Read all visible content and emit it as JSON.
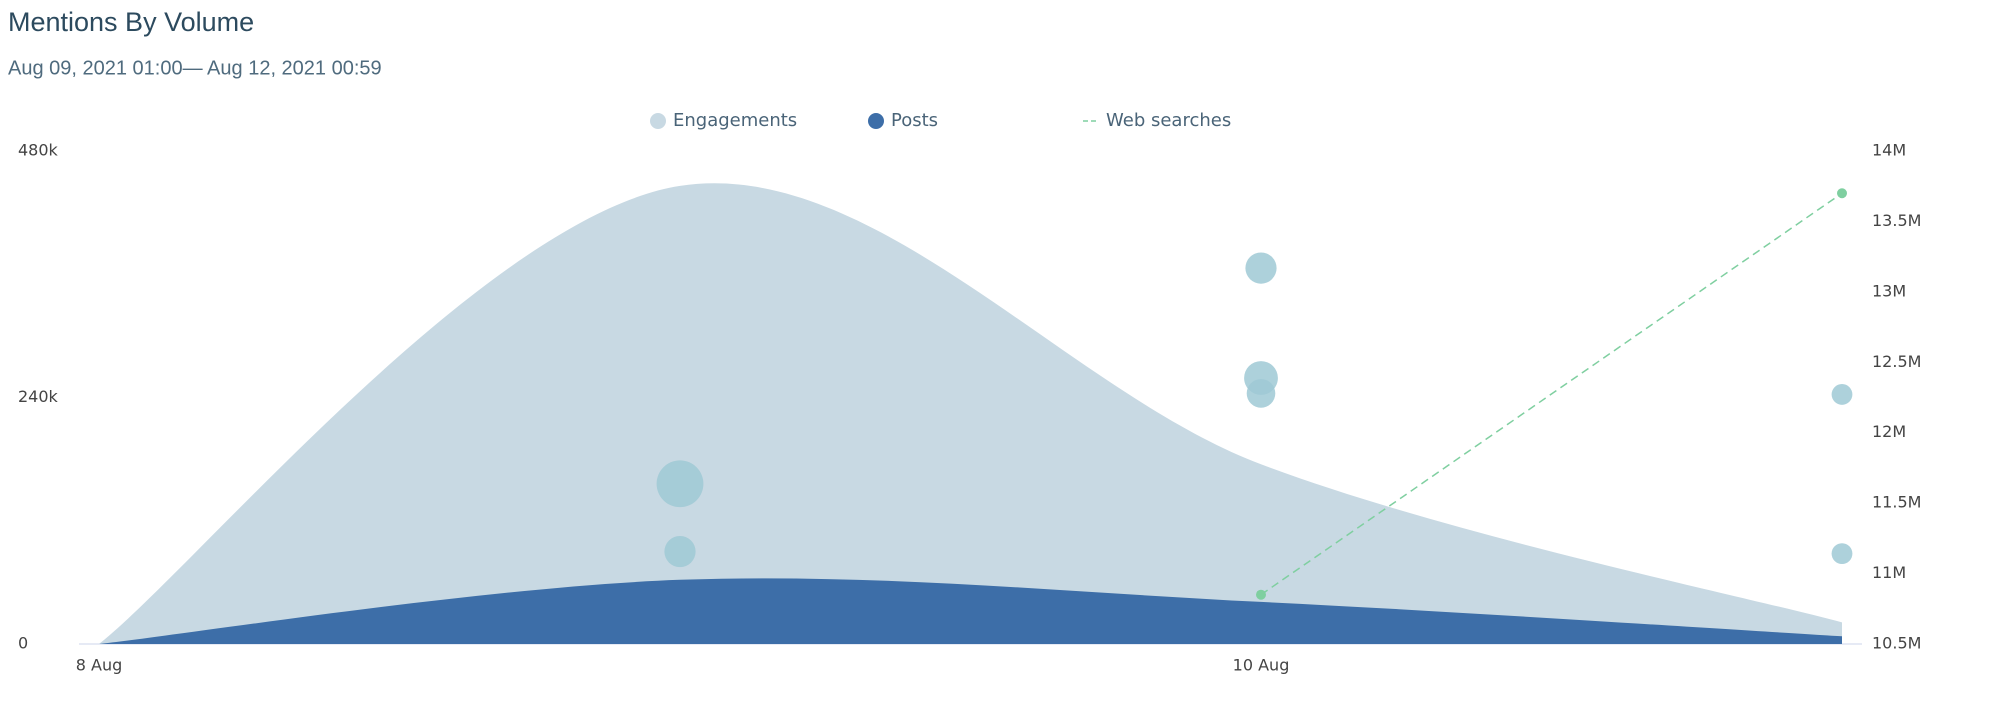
{
  "chart_data": {
    "type": "area",
    "title": "Mentions By Volume",
    "subtitle": "Aug 09, 2021 01:00— Aug 12, 2021 00:59",
    "categories": [
      "8 Aug",
      null,
      "10 Aug",
      null
    ],
    "series": [
      {
        "name": "Engagements",
        "type": "area",
        "color": "#c8d9e3",
        "values": [
          0,
          446000,
          175000,
          21000
        ]
      },
      {
        "name": "Posts",
        "type": "area",
        "color": "#3d6ea8",
        "values": [
          0,
          62500,
          41000,
          7500
        ]
      },
      {
        "name": "Web searches",
        "type": "line",
        "dashed": true,
        "axis": "y2",
        "color": "#7fcfa0",
        "values": [
          null,
          null,
          10850000,
          13700000
        ]
      }
    ],
    "bubbles": {
      "color": "#9fc9d5",
      "x": [
        1,
        1,
        2,
        2,
        2,
        3,
        3
      ],
      "values": [
        156000,
        90000,
        366000,
        259000,
        244000,
        243000,
        88000
      ],
      "sizes": [
        324,
        144,
        144,
        169,
        121,
        64,
        64
      ]
    },
    "ylim": [
      0,
      480000
    ],
    "yticks": [
      0,
      {
        "value": 240000,
        "label": "240k"
      },
      {
        "value": 480000,
        "label": "480k"
      }
    ],
    "y2lim": [
      10500000,
      14000000
    ],
    "y2ticks": [
      {
        "value": 10500000,
        "label": "10.5M"
      },
      {
        "value": 11000000,
        "label": "11M"
      },
      {
        "value": 11500000,
        "label": "11.5M"
      },
      {
        "value": 12000000,
        "label": "12M"
      },
      {
        "value": 12500000,
        "label": "12.5M"
      },
      {
        "value": 13000000,
        "label": "13M"
      },
      {
        "value": 13500000,
        "label": "13.5M"
      },
      {
        "value": 14000000,
        "label": "14M"
      }
    ]
  }
}
